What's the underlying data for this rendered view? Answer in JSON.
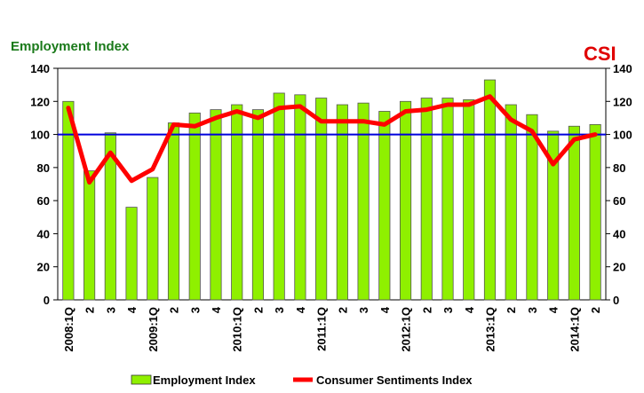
{
  "chart_data": {
    "type": "bar",
    "left_axis_title": "Employment Index",
    "right_axis_title": "CSI",
    "categories": [
      "2008:1Q",
      "2",
      "3",
      "4",
      "2009:1Q",
      "2",
      "3",
      "4",
      "2010:1Q",
      "2",
      "3",
      "4",
      "2011:1Q",
      "2",
      "3",
      "4",
      "2012:1Q",
      "2",
      "3",
      "4",
      "2013:1Q",
      "2",
      "3",
      "4",
      "2014:1Q",
      "2"
    ],
    "series": [
      {
        "name": "Employment Index",
        "type": "bar",
        "color": "#8ff000",
        "values": [
          120,
          78,
          101,
          56,
          74,
          107,
          113,
          115,
          118,
          115,
          125,
          124,
          122,
          118,
          119,
          114,
          120,
          122,
          122,
          121,
          133,
          118,
          112,
          102,
          105,
          106
        ]
      },
      {
        "name": "Consumer Sentiments Index",
        "type": "line",
        "color": "#ff0000",
        "values": [
          116,
          71,
          89,
          72,
          79,
          106,
          105,
          110,
          114,
          110,
          116,
          117,
          108,
          108,
          108,
          106,
          114,
          115,
          118,
          118,
          123,
          109,
          102,
          82,
          97,
          100
        ]
      }
    ],
    "reference_line": {
      "value": 100,
      "color": "#0000dd"
    },
    "ylim": [
      0,
      140
    ],
    "y_ticks": [
      0,
      20,
      40,
      60,
      80,
      100,
      120,
      140
    ],
    "legend_position": "bottom"
  }
}
